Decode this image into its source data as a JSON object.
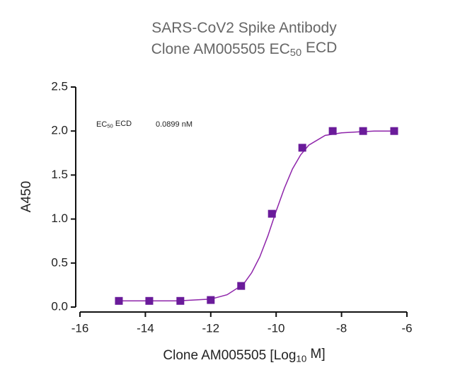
{
  "chart_data": {
    "type": "scatter",
    "title": [
      [
        "SARS-CoV2 Spike Antibody"
      ],
      [
        "Clone AM005505 EC",
        "50",
        " ECD"
      ]
    ],
    "annotation": {
      "label": [
        "EC",
        "50",
        " ECD"
      ],
      "value": "0.0899 nM"
    },
    "xlabel": [
      "Clone AM005505 [Log",
      "10",
      " M]"
    ],
    "ylabel": "A450",
    "xlim": [
      -16,
      -6
    ],
    "xticks": [
      -16,
      -14,
      -12,
      -10,
      -8,
      -6
    ],
    "ylim": [
      0,
      2.5
    ],
    "yticks": [
      {
        "value": 0,
        "label": "0.0"
      },
      0.5,
      {
        "value": 1,
        "label": "1.0"
      },
      1.5,
      {
        "value": 2,
        "label": "2.0"
      },
      2.5
    ],
    "series": [
      {
        "kind": "points",
        "color": "#6a1b9a",
        "x": [
          -14.81,
          -13.88,
          -12.93,
          -12.0,
          -11.07,
          -10.13,
          -9.2,
          -8.27,
          -7.34,
          -6.39
        ],
        "values": [
          0.07,
          0.07,
          0.07,
          0.08,
          0.24,
          1.06,
          1.81,
          2.0,
          2.0,
          2.0
        ]
      },
      {
        "kind": "curve",
        "color": "#8e24aa",
        "x": [
          -14.8,
          -14,
          -13,
          -12.5,
          -12,
          -11.5,
          -11,
          -10.75,
          -10.5,
          -10.25,
          -10,
          -9.75,
          -9.5,
          -9.25,
          -9,
          -8.5,
          -8,
          -7,
          -6.3
        ],
        "values": [
          0.07,
          0.07,
          0.07,
          0.08,
          0.09,
          0.14,
          0.26,
          0.39,
          0.57,
          0.81,
          1.09,
          1.35,
          1.57,
          1.73,
          1.84,
          1.95,
          1.98,
          2.0,
          2.0
        ]
      }
    ]
  }
}
